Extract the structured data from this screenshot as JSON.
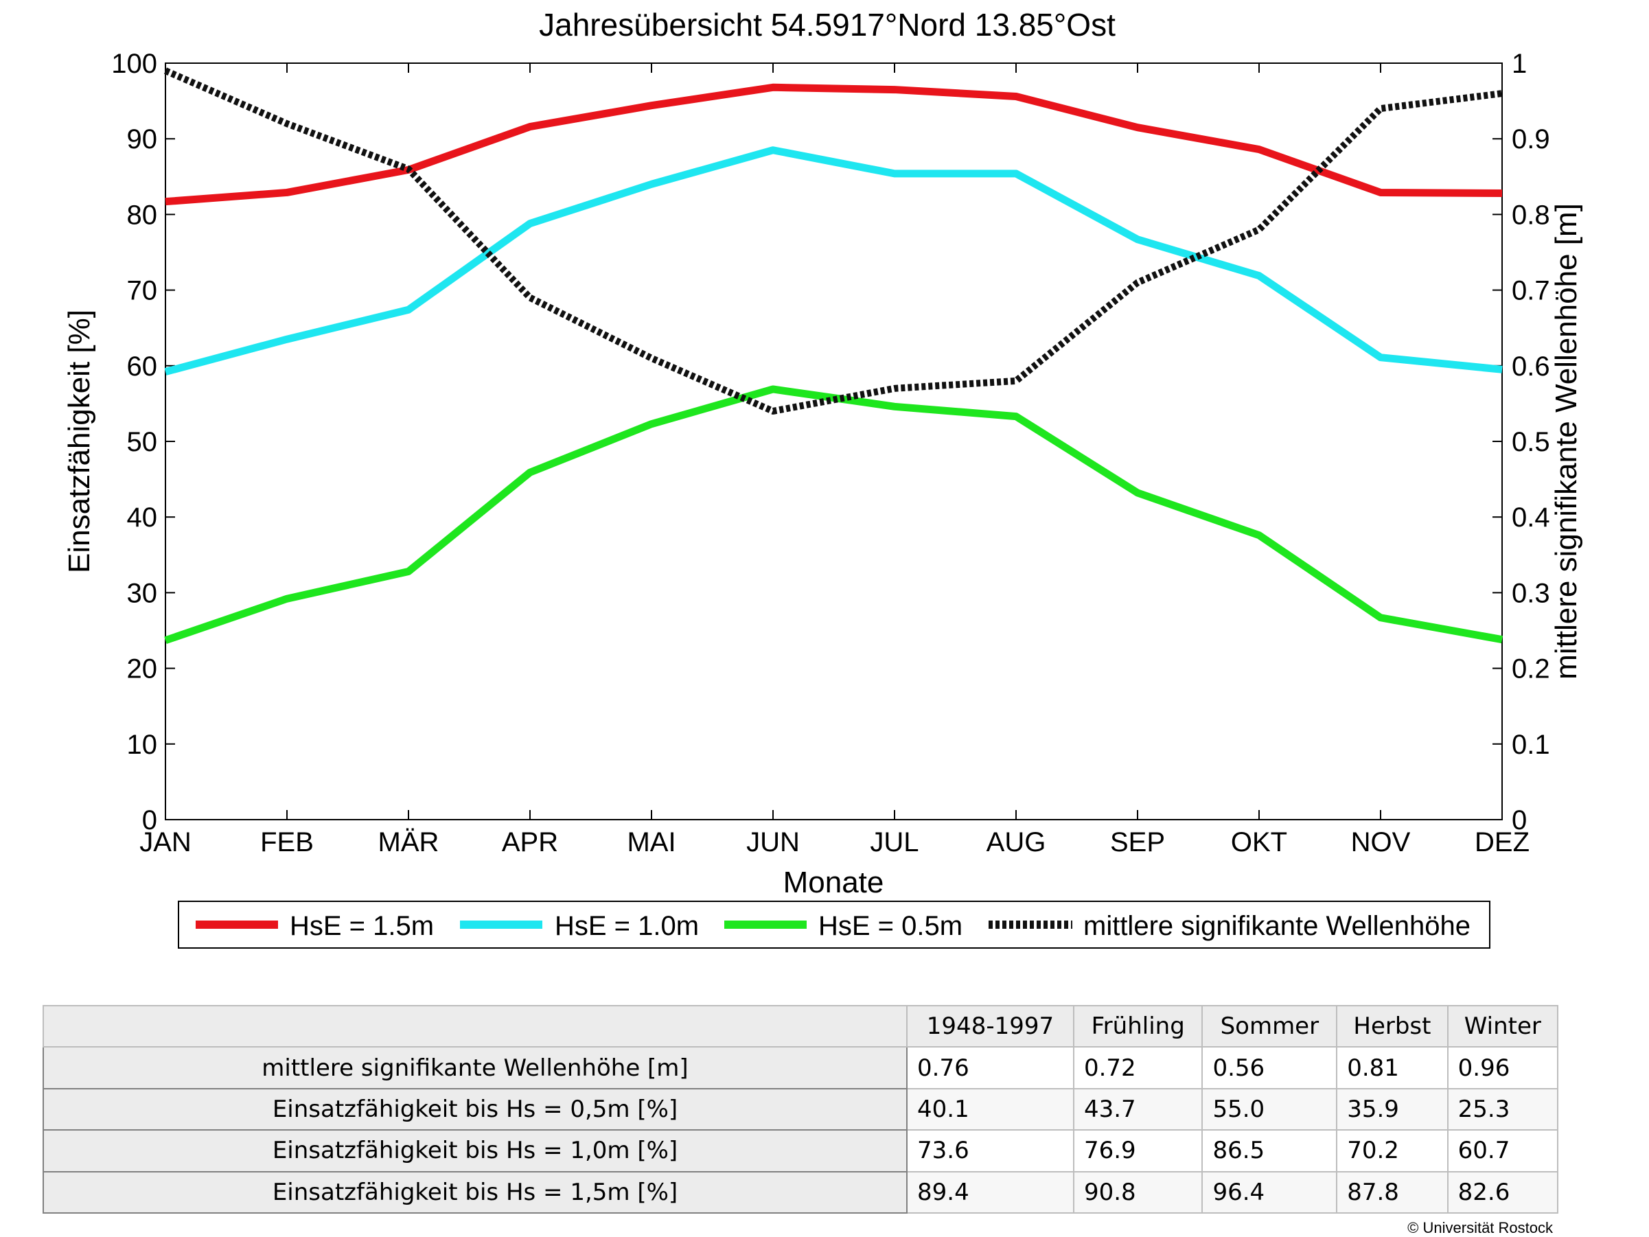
{
  "chart_data": {
    "type": "line",
    "title": "Jahresübersicht  54.5917°Nord  13.85°Ost",
    "xlabel": "Monate",
    "ylabel": "Einsatzfähigkeit [%]",
    "y2label": "mittlere signifikante Wellenhöhe [m]",
    "categories": [
      "JAN",
      "FEB",
      "MÄR",
      "APR",
      "MAI",
      "JUN",
      "JUL",
      "AUG",
      "SEP",
      "OKT",
      "NOV",
      "DEZ"
    ],
    "ylim": [
      0,
      100
    ],
    "y2lim": [
      0,
      1
    ],
    "yticks": [
      "0",
      "10",
      "20",
      "30",
      "40",
      "50",
      "60",
      "70",
      "80",
      "90",
      "100"
    ],
    "y2ticks": [
      "0",
      "0.1",
      "0.2",
      "0.3",
      "0.4",
      "0.5",
      "0.6",
      "0.7",
      "0.8",
      "0.9",
      "1"
    ],
    "grid": false,
    "legend_position": "bottom",
    "series": [
      {
        "name": "HsE = 1.5m",
        "axis": "left",
        "color": "#e8141b",
        "style": "solid",
        "values": [
          81.7,
          82.9,
          85.9,
          91.6,
          94.4,
          96.8,
          96.5,
          95.6,
          91.5,
          88.6,
          82.9,
          82.8
        ]
      },
      {
        "name": "HsE = 1.0m",
        "axis": "left",
        "color": "#1ee6f0",
        "style": "solid",
        "values": [
          59.2,
          63.5,
          67.4,
          78.8,
          84.0,
          88.5,
          85.4,
          85.4,
          76.7,
          71.9,
          61.1,
          59.5
        ]
      },
      {
        "name": "HsE = 0.5m",
        "axis": "left",
        "color": "#1ee61e",
        "style": "solid",
        "values": [
          23.7,
          29.2,
          32.8,
          45.9,
          52.3,
          56.9,
          54.6,
          53.3,
          43.2,
          37.6,
          26.7,
          23.8
        ]
      },
      {
        "name": "mittlere signifikante Wellenhöhe",
        "axis": "right",
        "color": "#111111",
        "style": "dotted",
        "values": [
          0.99,
          0.92,
          0.86,
          0.69,
          0.61,
          0.54,
          0.57,
          0.58,
          0.71,
          0.78,
          0.94,
          0.96
        ]
      }
    ]
  },
  "table": {
    "columns": [
      "",
      "1948-1997",
      "Frühling",
      "Sommer",
      "Herbst",
      "Winter"
    ],
    "rows": [
      {
        "label": "mittlere signifikante Wellenhöhe [m]",
        "values": [
          "0.76",
          "0.72",
          "0.56",
          "0.81",
          "0.96"
        ]
      },
      {
        "label": "Einsatzfähigkeit bis Hs = 0,5m [%]",
        "values": [
          "40.1",
          "43.7",
          "55.0",
          "35.9",
          "25.3"
        ]
      },
      {
        "label": "Einsatzfähigkeit bis Hs = 1,0m [%]",
        "values": [
          "73.6",
          "76.9",
          "86.5",
          "70.2",
          "60.7"
        ]
      },
      {
        "label": "Einsatzfähigkeit bis Hs = 1,5m [%]",
        "values": [
          "89.4",
          "90.8",
          "96.4",
          "87.8",
          "82.6"
        ]
      }
    ]
  },
  "copyright": "© Universität Rostock"
}
